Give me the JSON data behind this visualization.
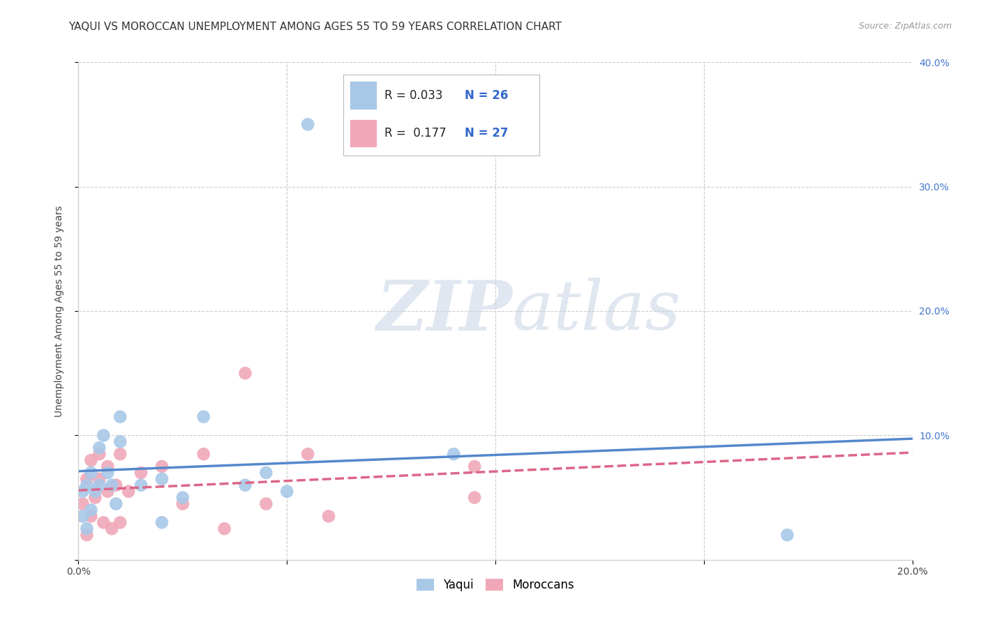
{
  "title": "YAQUI VS MOROCCAN UNEMPLOYMENT AMONG AGES 55 TO 59 YEARS CORRELATION CHART",
  "source": "Source: ZipAtlas.com",
  "ylabel": "Unemployment Among Ages 55 to 59 years",
  "xlim": [
    0.0,
    0.2
  ],
  "ylim": [
    0.0,
    0.4
  ],
  "xticks": [
    0.0,
    0.05,
    0.1,
    0.15,
    0.2
  ],
  "yticks": [
    0.0,
    0.1,
    0.2,
    0.3,
    0.4
  ],
  "xtick_labels": [
    "0.0%",
    "",
    "",
    "",
    "20.0%"
  ],
  "ytick_labels_right": [
    "",
    "10.0%",
    "20.0%",
    "30.0%",
    "40.0%"
  ],
  "yaqui_color": "#a8c8e8",
  "moroccan_color": "#f0a8b8",
  "yaqui_line_color": "#5588cc",
  "moroccan_line_color": "#dd6688",
  "R_yaqui": 0.033,
  "N_yaqui": 26,
  "R_moroccan": 0.177,
  "N_moroccan": 27,
  "background_color": "#ffffff",
  "grid_color": "#cccccc",
  "yaqui_x": [
    0.001,
    0.001,
    0.002,
    0.002,
    0.003,
    0.003,
    0.004,
    0.005,
    0.005,
    0.006,
    0.007,
    0.008,
    0.009,
    0.01,
    0.01,
    0.015,
    0.02,
    0.02,
    0.025,
    0.03,
    0.04,
    0.045,
    0.05,
    0.055,
    0.09,
    0.17
  ],
  "yaqui_y": [
    0.035,
    0.055,
    0.025,
    0.06,
    0.04,
    0.07,
    0.055,
    0.06,
    0.09,
    0.1,
    0.07,
    0.06,
    0.045,
    0.095,
    0.115,
    0.06,
    0.03,
    0.065,
    0.05,
    0.115,
    0.06,
    0.07,
    0.055,
    0.35,
    0.085,
    0.02
  ],
  "moroccan_x": [
    0.001,
    0.002,
    0.002,
    0.003,
    0.003,
    0.004,
    0.005,
    0.005,
    0.006,
    0.007,
    0.007,
    0.008,
    0.009,
    0.01,
    0.01,
    0.012,
    0.015,
    0.02,
    0.025,
    0.03,
    0.035,
    0.04,
    0.045,
    0.055,
    0.06,
    0.095,
    0.095
  ],
  "moroccan_y": [
    0.045,
    0.02,
    0.065,
    0.035,
    0.08,
    0.05,
    0.065,
    0.085,
    0.03,
    0.055,
    0.075,
    0.025,
    0.06,
    0.085,
    0.03,
    0.055,
    0.07,
    0.075,
    0.045,
    0.085,
    0.025,
    0.15,
    0.045,
    0.085,
    0.035,
    0.05,
    0.075
  ],
  "watermark_zip": "ZIP",
  "watermark_atlas": "atlas",
  "title_fontsize": 11,
  "axis_label_fontsize": 10,
  "tick_fontsize": 10,
  "legend_fontsize": 12,
  "source_fontsize": 9
}
